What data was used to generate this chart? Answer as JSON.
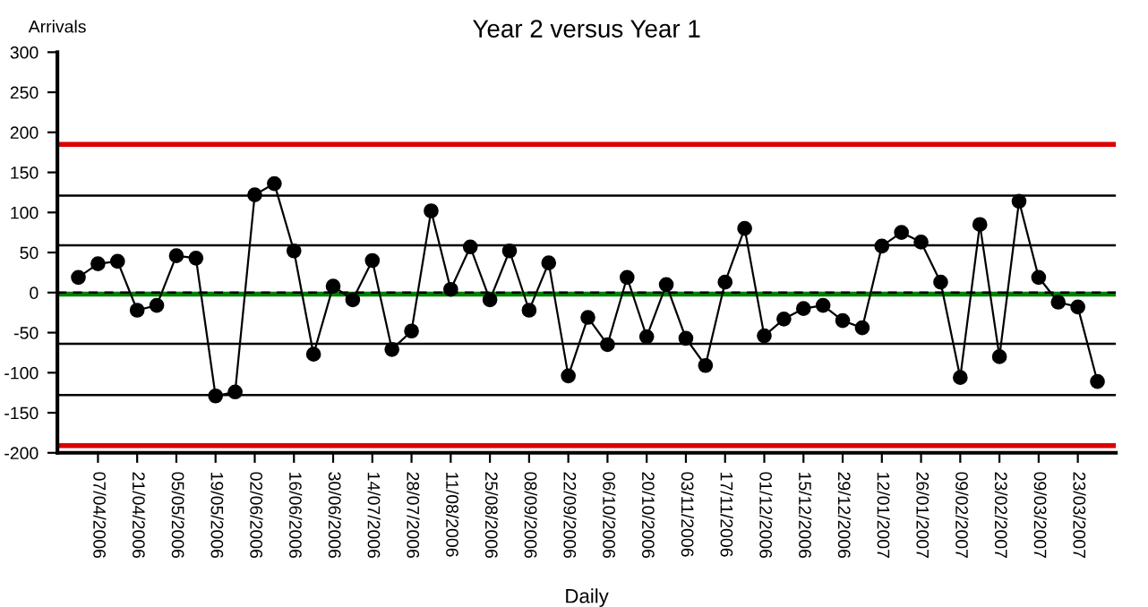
{
  "chart_data": {
    "type": "line",
    "title": "Year 2 versus Year 1",
    "ylabel": "Arrivals",
    "xlabel": "Daily",
    "categories": [
      null,
      "07/04/2006",
      null,
      "21/04/2006",
      null,
      "05/05/2006",
      null,
      "19/05/2006",
      null,
      "02/06/2006",
      null,
      "16/06/2006",
      null,
      "30/06/2006",
      null,
      "14/07/2006",
      null,
      "28/07/2006",
      null,
      "11/08/2006",
      null,
      "25/08/2006",
      null,
      "08/09/2006",
      null,
      "22/09/2006",
      null,
      "06/10/2006",
      null,
      "20/10/2006",
      null,
      "03/11/2006",
      null,
      "17/11/2006",
      null,
      "01/12/2006",
      null,
      "15/12/2006",
      null,
      "29/12/2006",
      null,
      "12/01/2007",
      null,
      "26/01/2007",
      null,
      "09/02/2007",
      null,
      "23/02/2007",
      null,
      "09/03/2007",
      null,
      "23/03/2007",
      null
    ],
    "series": [
      {
        "color": "#000000",
        "values": [
          19,
          36,
          39,
          -22,
          -16,
          46,
          43,
          -129,
          -124,
          122,
          136,
          52,
          -77,
          8,
          -9,
          40,
          -71,
          -48,
          102,
          4,
          57,
          -9,
          52,
          -22,
          37,
          -104,
          -31,
          -65,
          19,
          -55,
          10,
          -57,
          -91,
          13,
          80,
          -54,
          -33,
          -20,
          -16,
          -35,
          -44,
          58,
          75,
          63,
          13,
          -106,
          85,
          -80,
          114,
          19,
          -12,
          -18,
          -111
        ]
      }
    ],
    "marker": "circle",
    "line_style": "solid",
    "grid": false,
    "legend": false,
    "ylim": [
      -200,
      300
    ],
    "yticks": [
      -200,
      -150,
      -100,
      -50,
      0,
      50,
      100,
      150,
      200,
      250,
      300
    ],
    "ref_lines": [
      {
        "axis": "y",
        "value": 185,
        "color": "#dd0000"
      },
      {
        "axis": "y",
        "value": 121,
        "color": "#000000"
      },
      {
        "axis": "y",
        "value": 59,
        "color": "#000000"
      },
      {
        "axis": "y",
        "value": 0,
        "color": "#000000",
        "line_style": "dashed"
      },
      {
        "axis": "y",
        "value": -2,
        "color": "#008000"
      },
      {
        "axis": "y",
        "value": -64,
        "color": "#000000"
      },
      {
        "axis": "y",
        "value": -128,
        "color": "#000000"
      },
      {
        "axis": "y",
        "value": -191,
        "color": "#dd0000"
      }
    ]
  }
}
